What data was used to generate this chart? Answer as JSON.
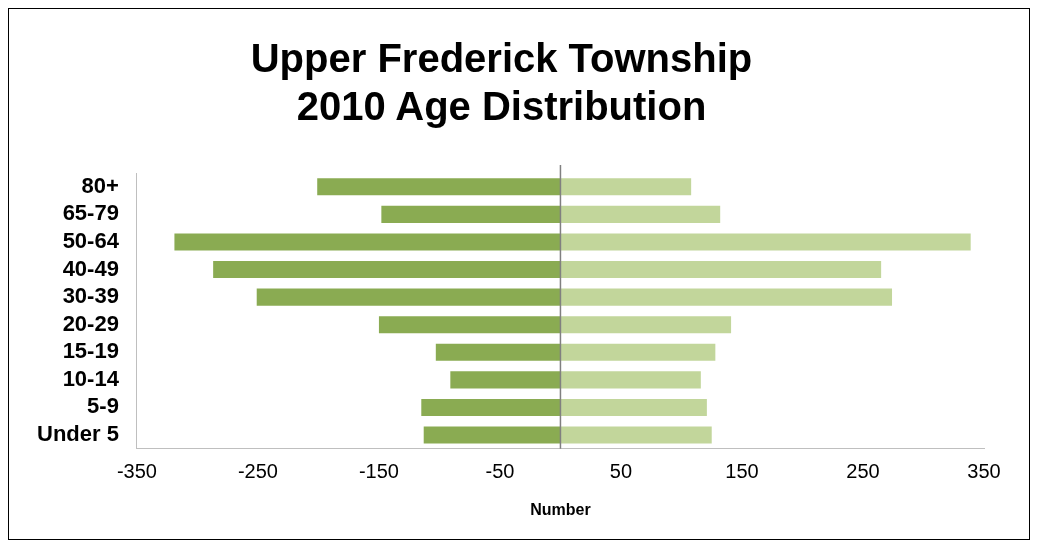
{
  "chart_data": {
    "type": "bar",
    "orientation": "horizontal",
    "stacked": true,
    "title": "Upper Frederick Township\n2010 Age Distribution",
    "xlabel": "Number",
    "categories": [
      "80+",
      "65-79",
      "50-64",
      "40-49",
      "30-39",
      "20-29",
      "15-19",
      "10-14",
      "5-9",
      "Under 5"
    ],
    "series": [
      {
        "color": "#8aab52",
        "values": [
          -201,
          -148,
          -319,
          -287,
          -251,
          -150,
          -103,
          -91,
          -115,
          -113
        ]
      },
      {
        "color": "#c2d69b",
        "values": [
          108,
          132,
          339,
          265,
          274,
          141,
          128,
          116,
          121,
          125
        ]
      }
    ],
    "xlim": [
      -350,
      350
    ],
    "xticks": [
      -350,
      -250,
      -150,
      -50,
      50,
      150,
      250,
      350
    ],
    "ref_lines": [
      {
        "axis": "x",
        "value": 0,
        "color": "#808080"
      }
    ],
    "grid": false,
    "legend": false
  }
}
